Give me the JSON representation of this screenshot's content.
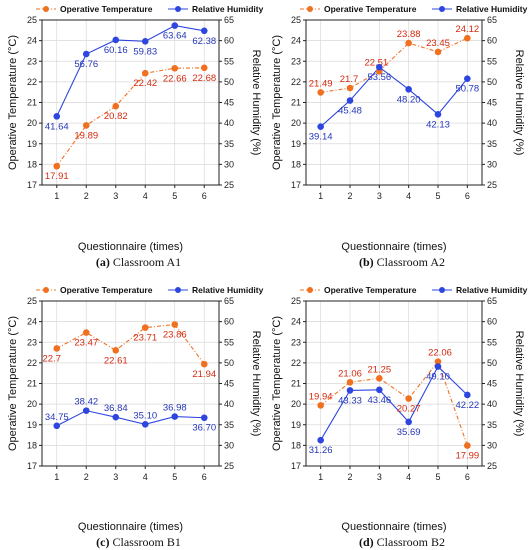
{
  "colors": {
    "temperature": "#f07020",
    "humidity": "#2e46e0",
    "temperature_label": "#d42a10",
    "humidity_label": "#2436b8"
  },
  "chart_data": [
    {
      "type": "line",
      "caption_letter": "(a)",
      "caption_text": " Classroom A1",
      "xlabel": "Questionnaire (times)",
      "ylabel_left": "Operative Temperature (°C)",
      "ylabel_right": "Relative Humidity (%)",
      "legend": [
        "Operative Temperature",
        "Relative Humidity"
      ],
      "x": [
        1,
        2,
        3,
        4,
        5,
        6
      ],
      "y_left_range": [
        17,
        25
      ],
      "y_left_ticks": [
        "17",
        "18",
        "19",
        "20",
        "21",
        "22",
        "23",
        "24",
        "25"
      ],
      "y_right_range": [
        25,
        65
      ],
      "y_right_ticks": [
        "25",
        "30",
        "35",
        "40",
        "45",
        "50",
        "55",
        "60",
        "65"
      ],
      "temperature": [
        17.91,
        19.89,
        20.82,
        22.42,
        22.66,
        22.68
      ],
      "temperature_labels": [
        "17.91",
        "19.89",
        "20.82",
        "22.42",
        "22.66",
        "22.68"
      ],
      "humidity": [
        41.64,
        56.76,
        60.16,
        59.83,
        63.64,
        62.38
      ],
      "humidity_labels": [
        "41.64",
        "56.76",
        "60.16",
        "59.83",
        "63.64",
        "62.38"
      ]
    },
    {
      "type": "line",
      "caption_letter": "(b)",
      "caption_text": " Classroom A2",
      "xlabel": "Questionnaire (times)",
      "ylabel_left": "Operative Temperature (°C)",
      "ylabel_right": "Relative Humidity (%)",
      "legend": [
        "Operative Temperature",
        "Relative Humidity"
      ],
      "x": [
        1,
        2,
        3,
        4,
        5,
        6
      ],
      "y_left_range": [
        17,
        25
      ],
      "y_left_ticks": [
        "17",
        "18",
        "19",
        "20",
        "21",
        "22",
        "23",
        "24",
        "25"
      ],
      "y_right_range": [
        25,
        65
      ],
      "y_right_ticks": [
        "25",
        "30",
        "35",
        "40",
        "45",
        "50",
        "55",
        "60",
        "65"
      ],
      "temperature": [
        21.49,
        21.7,
        22.51,
        23.88,
        23.45,
        24.12
      ],
      "temperature_labels": [
        "21.49",
        "21.7",
        "22.51",
        "23.88",
        "23.45",
        "24.12"
      ],
      "humidity": [
        39.14,
        45.48,
        53.56,
        48.2,
        42.13,
        50.78
      ],
      "humidity_labels": [
        "39.14",
        "45.48",
        "53.56",
        "48.20",
        "42.13",
        "50.78"
      ]
    },
    {
      "type": "line",
      "caption_letter": "(c)",
      "caption_text": " Classroom B1",
      "xlabel": "Questionnaire (times)",
      "ylabel_left": "Operative Temperature (°C)",
      "ylabel_right": "Relative Humidity (%)",
      "legend": [
        "Operative Temperature",
        "Relative Humidity"
      ],
      "x": [
        1,
        2,
        3,
        4,
        5,
        6
      ],
      "y_left_range": [
        17,
        25
      ],
      "y_left_ticks": [
        "17",
        "18",
        "19",
        "20",
        "21",
        "22",
        "23",
        "24",
        "25"
      ],
      "y_right_range": [
        25,
        65
      ],
      "y_right_ticks": [
        "25",
        "30",
        "35",
        "40",
        "45",
        "50",
        "55",
        "60",
        "65"
      ],
      "temperature": [
        22.7,
        23.47,
        22.61,
        23.71,
        23.86,
        21.94
      ],
      "temperature_labels": [
        "22.7",
        "23.47",
        "22.61",
        "23.71",
        "23.86",
        "21.94"
      ],
      "humidity": [
        34.75,
        38.42,
        36.84,
        35.1,
        36.98,
        36.7
      ],
      "humidity_labels": [
        "34.75",
        "38.42",
        "36.84",
        "35.10",
        "36.98",
        "36.70"
      ]
    },
    {
      "type": "line",
      "caption_letter": "(d)",
      "caption_text": " Classroom B2",
      "xlabel": "Questionnaire (times)",
      "ylabel_left": "Operative Temperature (°C)",
      "ylabel_right": "Relative Humidity (%)",
      "legend": [
        "Operative Temperature",
        "Relative Humidity"
      ],
      "x": [
        1,
        2,
        3,
        4,
        5,
        6
      ],
      "y_left_range": [
        17,
        25
      ],
      "y_left_ticks": [
        "17",
        "18",
        "19",
        "20",
        "21",
        "22",
        "23",
        "24",
        "25"
      ],
      "y_right_range": [
        25,
        65
      ],
      "y_right_ticks": [
        "25",
        "30",
        "35",
        "40",
        "45",
        "50",
        "55",
        "60",
        "65"
      ],
      "temperature": [
        19.94,
        21.06,
        21.25,
        20.27,
        22.06,
        17.99
      ],
      "temperature_labels": [
        "19.94",
        "21.06",
        "21.25",
        "20.27",
        "22.06",
        "17.99"
      ],
      "humidity": [
        31.26,
        43.33,
        43.46,
        35.69,
        49.1,
        42.22
      ],
      "humidity_labels": [
        "31.26",
        "43.33",
        "43.46",
        "35.69",
        "49.10",
        "42.22"
      ]
    }
  ]
}
